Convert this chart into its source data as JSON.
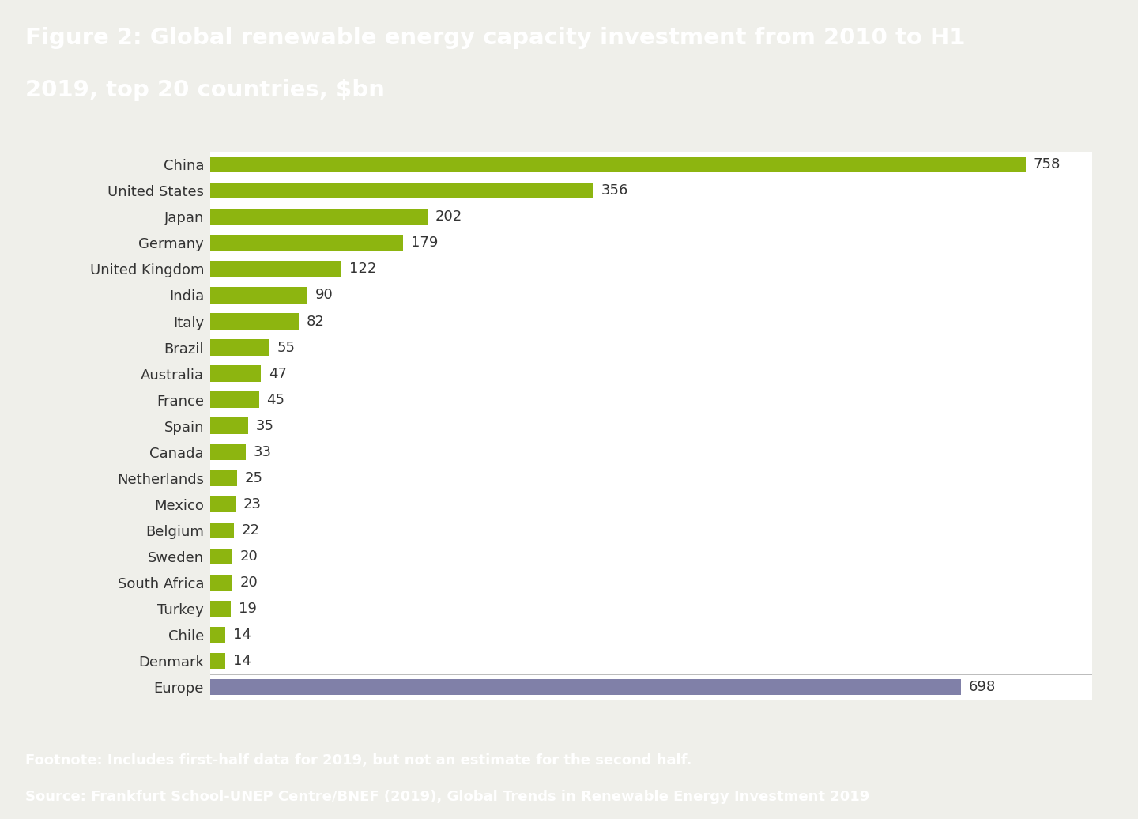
{
  "title_line1": "Figure 2: Global renewable energy capacity investment from 2010 to H1",
  "title_line2": "2019, top 20 countries, $bn",
  "title_bg_color": "#8b8b6f",
  "title_text_color": "#ffffff",
  "footnote_bg_color": "#8b8b6f",
  "footnote_text_color": "#ffffff",
  "footnote_line1": "Footnote: Includes first-half data for 2019, but not an estimate for the second half.",
  "footnote_line2": "Source: Frankfurt School-UNEP Centre/BNEF (2019), Global Trends in Renewable Energy Investment 2019",
  "chart_bg_color": "#ffffff",
  "outer_bg_color": "#efefea",
  "categories": [
    "China",
    "United States",
    "Japan",
    "Germany",
    "United Kingdom",
    "India",
    "Italy",
    "Brazil",
    "Australia",
    "France",
    "Spain",
    "Canada",
    "Netherlands",
    "Mexico",
    "Belgium",
    "Sweden",
    "South Africa",
    "Turkey",
    "Chile",
    "Denmark",
    "Europe"
  ],
  "values": [
    758,
    356,
    202,
    179,
    122,
    90,
    82,
    55,
    47,
    45,
    35,
    33,
    25,
    23,
    22,
    20,
    20,
    19,
    14,
    14,
    698
  ],
  "bar_colors": [
    "#8db510",
    "#8db510",
    "#8db510",
    "#8db510",
    "#8db510",
    "#8db510",
    "#8db510",
    "#8db510",
    "#8db510",
    "#8db510",
    "#8db510",
    "#8db510",
    "#8db510",
    "#8db510",
    "#8db510",
    "#8db510",
    "#8db510",
    "#8db510",
    "#8db510",
    "#8db510",
    "#8080a8"
  ],
  "label_color": "#333333",
  "value_label_color": "#333333",
  "bar_height": 0.62,
  "xlim_max": 820,
  "title_fontsize": 21,
  "label_fontsize": 13,
  "value_fontsize": 13
}
